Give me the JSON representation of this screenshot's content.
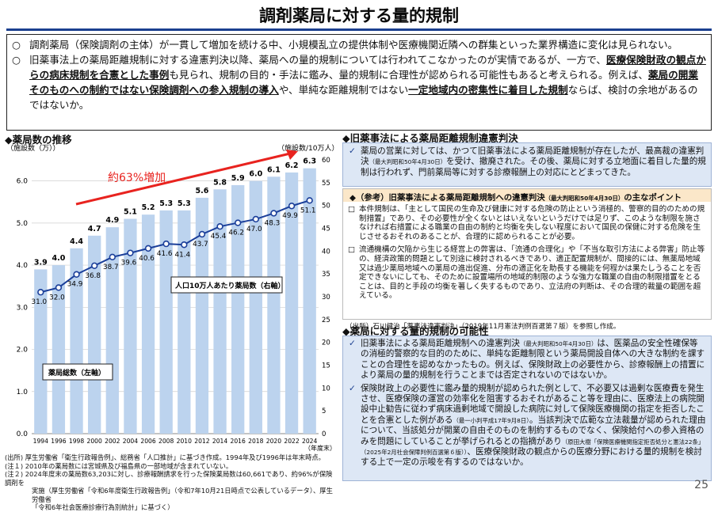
{
  "title": "調剤薬局に対する量的規制",
  "intro": {
    "bullet": "○",
    "p1": "調剤薬局（保険調剤の主体）が一貫して増加を続ける中、小規模乱立の提供体制や医療機関近隣への群集といった業界構造に変化は見られない。",
    "p2_a": "旧薬事法上の薬局距離規制に対する違憲判決以降、薬局への量的規制については行われてこなかったのが実情であるが、一方で、",
    "p2_u1": "医療保険財政の観点からの病床規制を合憲とした事例",
    "p2_b": "も見られ、規制の目的・手法に鑑み、量的規制に合理性が認められる可能性もあると考えられる。例えば、",
    "p2_u2": "薬局の開業そのものへの制約ではない保険調剤への参入規制の導入",
    "p2_c": "や、単純な距離規制ではない",
    "p2_u3": "一定地域内の密集性に着目した規制",
    "p2_d": "ならば、検討の余地があるのではないか。"
  },
  "left_head": "◆薬局数の推移",
  "chart_labels": {
    "left_unit": "（施設数（万））",
    "right_unit": "（施設数/10万人）",
    "year_unit": "（年度末）",
    "increase": "約63%増加",
    "bar_legend": "薬局総数（左軸）",
    "line_legend": "人口10万人あたり薬局数（右軸）"
  },
  "chart_data": {
    "type": "bar",
    "categories": [
      "1994",
      "1996",
      "1998",
      "2000",
      "2002",
      "2004",
      "2006",
      "2008",
      "2010",
      "2012",
      "2014",
      "2016",
      "2018",
      "2020",
      "2022",
      "2024"
    ],
    "series": [
      {
        "name": "薬局総数（左軸）",
        "values": [
          3.9,
          4.0,
          4.4,
          4.7,
          4.9,
          5.1,
          5.2,
          5.3,
          5.3,
          5.6,
          5.8,
          5.9,
          6.0,
          6.1,
          6.2,
          6.3
        ]
      },
      {
        "name": "人口10万人あたり薬局数（右軸）",
        "values": [
          31.0,
          32.0,
          34.9,
          36.8,
          38.7,
          39.6,
          40.6,
          41.6,
          41.4,
          43.7,
          45.4,
          46.2,
          47.0,
          48.3,
          49.9,
          51.1
        ]
      }
    ],
    "ylim": [
      0,
      6.5
    ],
    "y2lim": [
      0,
      60
    ],
    "yticks": [
      "0.0",
      "1.0",
      "2.0",
      "3.0",
      "4.0",
      "5.0",
      "6.0"
    ],
    "y2ticks": [
      "0",
      "5",
      "10",
      "15",
      "20",
      "25",
      "30",
      "35",
      "40",
      "45",
      "50",
      "55",
      "60"
    ]
  },
  "notes": [
    "(出所) 厚生労働省「衛生行政報告例」、総務省「人口推計」に基づき作成。1994年及び1996年は年末時点。",
    "(注１) 2010年の薬局数には宮城県及び福島県の一部地域が含まれていない。",
    "(注２) 2024年度末の薬局数63,203に対し、診療報酬請求を行った保険薬局数は60,661であり、約96%が保険調剤を",
    "実施（厚生労働省「令和6年度衛生行政報告例」（令和7年10月21日時点で公表しているデータ）、厚生労働省",
    "「令和6年社会医療診療行為別統計」に基づく）"
  ],
  "right": {
    "head1": "◆旧薬事法による薬局距離規制違憲判決",
    "box1_a": "薬局の営業に対しては、かつて旧薬事法による薬局距離規制が存在したが、最高裁の違憲判決",
    "box1_small": "（最大判昭和50年4月30日）",
    "box1_b": "を受け、撤廃された。その後、薬局に対する立地面に着目した量的規制は行われず、門前薬局等に対する診療報酬上の対応にとどまってきた。",
    "ref_head_a": "◆（参考）旧薬事法による薬局距離規制への違憲判決",
    "ref_head_small": "（最大判昭和50年4月30日）",
    "ref_head_b": "の主なポイント",
    "sq": "□",
    "ref1": "本件規制は、「主として国民の生命及び健康に対する危険の防止という消極的、警察的目的のための規制措置」であり、その必要性が全くないとはいえないというだけでは足りず、このような制限を施さなければ右措置による職業の自由の制約と均衡を失しない程度において国民の保健に対する危険を生じさせるおそれのあることが、合理的に認められることが必要。",
    "ref2": "流通機構の欠陥から生じる経営上の弊害は、「流通の合理化」や「不当な取引方法による弊害」防止等の、経済政策的問題として別途に検討されるべきであり、適正配置規制が、間接的には、無薬局地域又は過少薬局地域への薬局の進出促進、分布の適正化を助長する機能を何程かは果たしうることを否定できないにしても、そのために設置場所の地域的制限のような強力な職業の自由の制限措置をとることは、目的と手段の均衡を著しく失するものであり、立法府の判断は、その合理的裁量の範囲を超えている。",
    "src": "（出所）石川健治「薬事法違憲判決」（2019年11月憲法判例百選第７版）を参照し作成。",
    "head2": "◆薬局に対する量的規制の可能性",
    "b2_1a": "旧薬事法による薬局距離規制への違憲判決",
    "b2_1small": "（最大判昭和50年4月30日）",
    "b2_1b": "は、医薬品の安全性確保等の消極的警察的な目的のために、単純な距離制限という薬局開設自体への大きな制約を課すことの合理性を認めなかったもの。例えば、保険財政上の必要性から、診療報酬上の措置により薬局の量的規制を行うことまでは否定されないのではないか。",
    "b2_2a": "保険財政上の必要性に鑑み量的規制が認められた例として、不必要又は過剰な医療費を発生させ、医療保険の運営の効率化を阻害するおそれがあること等を理由に、医療法上の病院開設中止勧告に従わず病床過剰地域で開設した病院に対して保険医療機関の指定を拒否したことを合憲とした例がある",
    "b2_2small": "（最一小判平成17年9月8日）",
    "b2_2b": "。当該判決で広範な立法裁量が認められた理由について、当該処分が開業の自由そのものを制約するものでなく、保険給付への参入資格のみを問題にしていることが挙げられるとの指摘があり",
    "b2_2small2": "（原田大樹「保険医療機関指定拒否処分と憲法22条」（2025年2月社会保障判例百選第６版））",
    "b2_2c": "、医療保険財政の観点からの医療分野における量的規制を検討する上で一定の示唆を有するのではないか。",
    "check": "✓"
  },
  "page": "25"
}
